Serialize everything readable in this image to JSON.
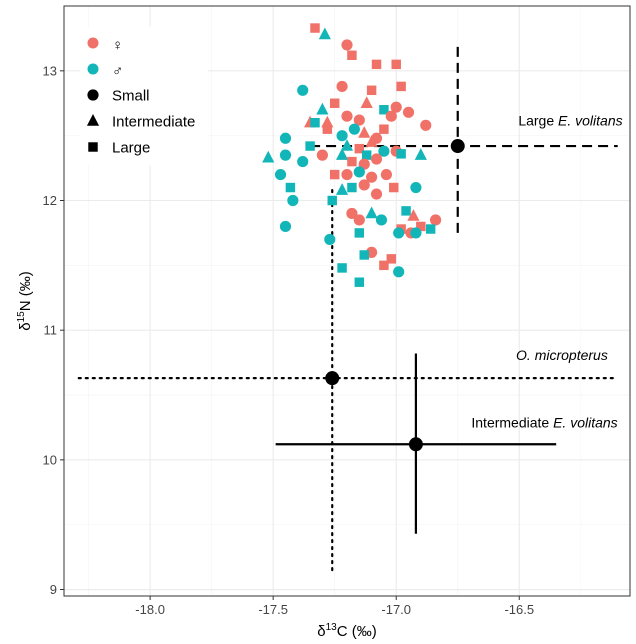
{
  "chart_data": {
    "type": "scatter",
    "xlabel": {
      "base": "δ",
      "sup": "13",
      "rest": "C (‰)"
    },
    "ylabel": {
      "base": "δ",
      "sup": "15",
      "rest": "N (‰)"
    },
    "xlim": [
      -18.35,
      -16.05
    ],
    "ylim": [
      8.95,
      13.5
    ],
    "xticks": [
      -18.0,
      -17.5,
      -17.0,
      -16.5
    ],
    "xtick_labels": [
      "-18.0",
      "-17.5",
      "-17.0",
      "-16.5"
    ],
    "yticks": [
      9,
      10,
      11,
      12,
      13
    ],
    "ytick_labels": [
      "9",
      "10",
      "11",
      "12",
      "13"
    ],
    "grid": true,
    "legend_position": "top-left",
    "legend": {
      "colors": [
        {
          "label": "♀",
          "color": "#F07167"
        },
        {
          "label": "♂",
          "color": "#13B6B8"
        }
      ],
      "shapes": [
        {
          "label": "Small",
          "shape": "circle"
        },
        {
          "label": "Intermediate",
          "shape": "triangle"
        },
        {
          "label": "Large",
          "shape": "square"
        }
      ]
    },
    "colors": {
      "female": "#F07167",
      "male": "#13B6B8",
      "summary": "#000000"
    },
    "points": [
      {
        "x": -17.33,
        "y": 13.33,
        "sex": "female",
        "shape": "square"
      },
      {
        "x": -17.2,
        "y": 13.2,
        "sex": "female",
        "shape": "circle"
      },
      {
        "x": -17.18,
        "y": 13.12,
        "sex": "female",
        "shape": "square"
      },
      {
        "x": -17.29,
        "y": 13.28,
        "sex": "male",
        "shape": "triangle"
      },
      {
        "x": -17.08,
        "y": 13.05,
        "sex": "female",
        "shape": "square"
      },
      {
        "x": -17.0,
        "y": 13.05,
        "sex": "female",
        "shape": "square"
      },
      {
        "x": -17.1,
        "y": 12.85,
        "sex": "female",
        "shape": "square"
      },
      {
        "x": -17.22,
        "y": 12.88,
        "sex": "female",
        "shape": "circle"
      },
      {
        "x": -16.98,
        "y": 12.88,
        "sex": "female",
        "shape": "square"
      },
      {
        "x": -17.12,
        "y": 12.75,
        "sex": "female",
        "shape": "triangle"
      },
      {
        "x": -17.38,
        "y": 12.85,
        "sex": "male",
        "shape": "circle"
      },
      {
        "x": -17.3,
        "y": 12.7,
        "sex": "male",
        "shape": "triangle"
      },
      {
        "x": -17.35,
        "y": 12.6,
        "sex": "female",
        "shape": "triangle"
      },
      {
        "x": -17.28,
        "y": 12.6,
        "sex": "female",
        "shape": "triangle"
      },
      {
        "x": -17.25,
        "y": 12.75,
        "sex": "female",
        "shape": "square"
      },
      {
        "x": -17.2,
        "y": 12.65,
        "sex": "female",
        "shape": "circle"
      },
      {
        "x": -17.15,
        "y": 12.62,
        "sex": "female",
        "shape": "circle"
      },
      {
        "x": -17.05,
        "y": 12.7,
        "sex": "male",
        "shape": "square"
      },
      {
        "x": -17.0,
        "y": 12.72,
        "sex": "female",
        "shape": "circle"
      },
      {
        "x": -16.95,
        "y": 12.68,
        "sex": "female",
        "shape": "circle"
      },
      {
        "x": -17.02,
        "y": 12.65,
        "sex": "female",
        "shape": "circle"
      },
      {
        "x": -16.88,
        "y": 12.58,
        "sex": "female",
        "shape": "circle"
      },
      {
        "x": -17.45,
        "y": 12.48,
        "sex": "male",
        "shape": "circle"
      },
      {
        "x": -17.33,
        "y": 12.6,
        "sex": "male",
        "shape": "square"
      },
      {
        "x": -17.28,
        "y": 12.55,
        "sex": "female",
        "shape": "square"
      },
      {
        "x": -17.22,
        "y": 12.5,
        "sex": "male",
        "shape": "circle"
      },
      {
        "x": -17.17,
        "y": 12.55,
        "sex": "male",
        "shape": "circle"
      },
      {
        "x": -17.13,
        "y": 12.52,
        "sex": "female",
        "shape": "triangle"
      },
      {
        "x": -17.08,
        "y": 12.48,
        "sex": "female",
        "shape": "circle"
      },
      {
        "x": -17.05,
        "y": 12.55,
        "sex": "female",
        "shape": "square"
      },
      {
        "x": -17.35,
        "y": 12.42,
        "sex": "male",
        "shape": "square"
      },
      {
        "x": -17.2,
        "y": 12.42,
        "sex": "male",
        "shape": "triangle"
      },
      {
        "x": -17.15,
        "y": 12.4,
        "sex": "female",
        "shape": "square"
      },
      {
        "x": -17.1,
        "y": 12.45,
        "sex": "female",
        "shape": "triangle"
      },
      {
        "x": -17.12,
        "y": 12.35,
        "sex": "male",
        "shape": "square"
      },
      {
        "x": -17.05,
        "y": 12.38,
        "sex": "male",
        "shape": "circle"
      },
      {
        "x": -17.0,
        "y": 12.38,
        "sex": "female",
        "shape": "circle"
      },
      {
        "x": -17.52,
        "y": 12.33,
        "sex": "male",
        "shape": "triangle"
      },
      {
        "x": -17.45,
        "y": 12.35,
        "sex": "male",
        "shape": "circle"
      },
      {
        "x": -17.38,
        "y": 12.3,
        "sex": "male",
        "shape": "circle"
      },
      {
        "x": -17.3,
        "y": 12.35,
        "sex": "female",
        "shape": "circle"
      },
      {
        "x": -17.22,
        "y": 12.35,
        "sex": "male",
        "shape": "triangle"
      },
      {
        "x": -17.18,
        "y": 12.3,
        "sex": "female",
        "shape": "square"
      },
      {
        "x": -17.13,
        "y": 12.28,
        "sex": "female",
        "shape": "circle"
      },
      {
        "x": -17.08,
        "y": 12.32,
        "sex": "female",
        "shape": "circle"
      },
      {
        "x": -16.98,
        "y": 12.36,
        "sex": "male",
        "shape": "square"
      },
      {
        "x": -16.9,
        "y": 12.35,
        "sex": "male",
        "shape": "triangle"
      },
      {
        "x": -17.47,
        "y": 12.2,
        "sex": "male",
        "shape": "circle"
      },
      {
        "x": -17.25,
        "y": 12.2,
        "sex": "female",
        "shape": "square"
      },
      {
        "x": -17.2,
        "y": 12.2,
        "sex": "female",
        "shape": "circle"
      },
      {
        "x": -17.15,
        "y": 12.22,
        "sex": "male",
        "shape": "circle"
      },
      {
        "x": -17.1,
        "y": 12.18,
        "sex": "female",
        "shape": "circle"
      },
      {
        "x": -17.04,
        "y": 12.2,
        "sex": "female",
        "shape": "circle"
      },
      {
        "x": -17.43,
        "y": 12.1,
        "sex": "male",
        "shape": "square"
      },
      {
        "x": -17.22,
        "y": 12.08,
        "sex": "male",
        "shape": "triangle"
      },
      {
        "x": -17.18,
        "y": 12.1,
        "sex": "male",
        "shape": "square"
      },
      {
        "x": -17.13,
        "y": 12.12,
        "sex": "female",
        "shape": "circle"
      },
      {
        "x": -17.08,
        "y": 12.05,
        "sex": "female",
        "shape": "circle"
      },
      {
        "x": -17.01,
        "y": 12.1,
        "sex": "female",
        "shape": "square"
      },
      {
        "x": -16.92,
        "y": 12.1,
        "sex": "male",
        "shape": "circle"
      },
      {
        "x": -17.42,
        "y": 12.0,
        "sex": "male",
        "shape": "circle"
      },
      {
        "x": -17.26,
        "y": 12.0,
        "sex": "male",
        "shape": "square"
      },
      {
        "x": -17.18,
        "y": 11.9,
        "sex": "female",
        "shape": "circle"
      },
      {
        "x": -17.15,
        "y": 11.85,
        "sex": "female",
        "shape": "circle"
      },
      {
        "x": -17.1,
        "y": 11.9,
        "sex": "male",
        "shape": "triangle"
      },
      {
        "x": -17.06,
        "y": 11.85,
        "sex": "male",
        "shape": "circle"
      },
      {
        "x": -16.96,
        "y": 11.92,
        "sex": "male",
        "shape": "square"
      },
      {
        "x": -16.93,
        "y": 11.88,
        "sex": "female",
        "shape": "triangle"
      },
      {
        "x": -16.84,
        "y": 11.85,
        "sex": "female",
        "shape": "circle"
      },
      {
        "x": -17.45,
        "y": 11.8,
        "sex": "male",
        "shape": "circle"
      },
      {
        "x": -17.15,
        "y": 11.75,
        "sex": "male",
        "shape": "square"
      },
      {
        "x": -16.98,
        "y": 11.78,
        "sex": "female",
        "shape": "square"
      },
      {
        "x": -16.94,
        "y": 11.75,
        "sex": "female",
        "shape": "circle"
      },
      {
        "x": -16.9,
        "y": 11.8,
        "sex": "female",
        "shape": "square"
      },
      {
        "x": -16.86,
        "y": 11.78,
        "sex": "male",
        "shape": "square"
      },
      {
        "x": -17.27,
        "y": 11.7,
        "sex": "male",
        "shape": "circle"
      },
      {
        "x": -17.1,
        "y": 11.6,
        "sex": "female",
        "shape": "circle"
      },
      {
        "x": -16.92,
        "y": 11.75,
        "sex": "male",
        "shape": "circle"
      },
      {
        "x": -17.02,
        "y": 11.55,
        "sex": "female",
        "shape": "square"
      },
      {
        "x": -17.22,
        "y": 11.48,
        "sex": "male",
        "shape": "square"
      },
      {
        "x": -17.13,
        "y": 11.58,
        "sex": "male",
        "shape": "square"
      },
      {
        "x": -17.05,
        "y": 11.5,
        "sex": "female",
        "shape": "square"
      },
      {
        "x": -17.15,
        "y": 11.37,
        "sex": "male",
        "shape": "square"
      },
      {
        "x": -16.99,
        "y": 11.45,
        "sex": "male",
        "shape": "circle"
      },
      {
        "x": -16.99,
        "y": 11.75,
        "sex": "male",
        "shape": "circle"
      }
    ],
    "summaries": [
      {
        "label_parts": [
          "Large ",
          "E. volitans",
          ""
        ],
        "x": -16.75,
        "y": 12.42,
        "x_range": [
          -17.35,
          -16.1
        ],
        "y_range": [
          11.75,
          13.22
        ],
        "line_style": "dashed",
        "label_anchor": [
          -16.08,
          12.58
        ]
      },
      {
        "label_parts": [
          "",
          "O. micropterus",
          ""
        ],
        "x": -17.26,
        "y": 10.63,
        "x_range": [
          -18.29,
          -16.12
        ],
        "y_range": [
          9.15,
          12.08
        ],
        "line_style": "dotted",
        "label_anchor": [
          -16.14,
          10.77
        ]
      },
      {
        "label_parts": [
          "Intermediate ",
          "E. volitans",
          ""
        ],
        "x": -16.92,
        "y": 10.12,
        "x_range": [
          -17.49,
          -16.35
        ],
        "y_range": [
          9.43,
          10.82
        ],
        "line_style": "solid",
        "label_anchor": [
          -16.1,
          10.25
        ]
      }
    ]
  }
}
